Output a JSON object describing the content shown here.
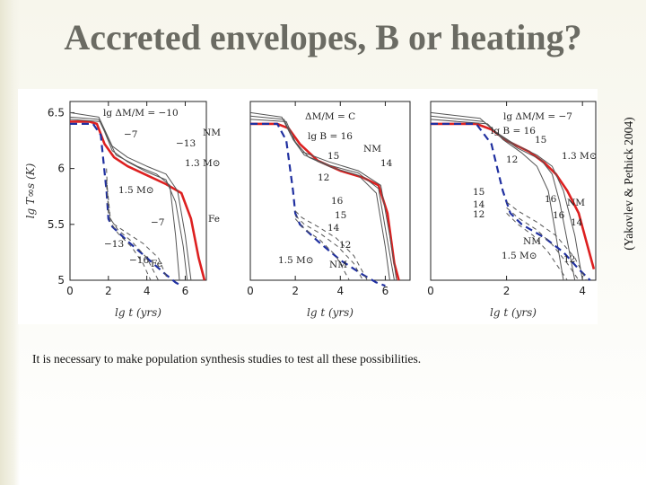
{
  "slide": {
    "title": "Accreted envelopes, B or heating?",
    "credit": "(Yakovlev & Pethick 2004)",
    "caption": "It is necessary to make population synthesis studies to test all these possibilities."
  },
  "colors": {
    "accent": "#dd2020",
    "blue": "#2030a0",
    "line": "#555555"
  },
  "chart_data": [
    {
      "type": "line",
      "panel": "left",
      "xlabel": "lg t   (yrs)",
      "ylabel": "lg T∞s  (K)",
      "xlim": [
        0,
        7.1
      ],
      "ylim": [
        5,
        6.6
      ],
      "xticks": [
        0,
        2,
        4,
        6
      ],
      "yticks": [
        5,
        5.5,
        6,
        6.5
      ],
      "labels": [
        "lg ΔM/M = −10",
        "−7",
        "−13",
        "NM",
        "1.3 M⊙",
        "1.5 M⊙",
        "−7",
        "Fe",
        "−13",
        "−16",
        "Fe"
      ],
      "series": [
        {
          "style": "red",
          "x": [
            0,
            1.0,
            1.4,
            1.8,
            2.3,
            3.0,
            4.0,
            5.0,
            5.8,
            6.3,
            6.7,
            7.0
          ],
          "y": [
            6.42,
            6.42,
            6.4,
            6.22,
            6.1,
            6.02,
            5.94,
            5.86,
            5.78,
            5.55,
            5.2,
            5.0
          ]
        },
        {
          "style": "thin",
          "x": [
            0,
            1.5,
            1.8,
            2.2,
            3.0,
            4.0,
            5.0,
            5.6,
            6.0,
            6.3
          ],
          "y": [
            6.5,
            6.46,
            6.35,
            6.2,
            6.1,
            6.02,
            5.95,
            5.8,
            5.4,
            5.0
          ]
        },
        {
          "style": "thin",
          "x": [
            0,
            1.5,
            1.8,
            2.2,
            3.0,
            4.0,
            5.0,
            5.5,
            5.9,
            6.1
          ],
          "y": [
            6.46,
            6.44,
            6.33,
            6.16,
            6.06,
            5.97,
            5.9,
            5.7,
            5.3,
            5.0
          ]
        },
        {
          "style": "thin",
          "x": [
            0,
            1.6,
            1.9,
            2.4,
            3.5,
            4.5,
            5.2,
            5.5,
            5.7
          ],
          "y": [
            6.44,
            6.42,
            6.3,
            6.12,
            6.02,
            5.95,
            5.85,
            5.4,
            5.0
          ]
        },
        {
          "style": "bluedash",
          "x": [
            0,
            1.2,
            1.6,
            1.9,
            2.0,
            2.2,
            3.0,
            4.0,
            5.0,
            5.5,
            5.8
          ],
          "y": [
            6.4,
            6.4,
            6.3,
            5.8,
            5.55,
            5.48,
            5.35,
            5.2,
            5.05,
            4.98,
            4.95
          ]
        },
        {
          "style": "dash",
          "x": [
            1.9,
            2.0,
            2.3,
            3.0,
            3.8,
            4.6,
            5.1
          ],
          "y": [
            6.0,
            5.58,
            5.5,
            5.42,
            5.33,
            5.2,
            5.0
          ]
        },
        {
          "style": "dash",
          "x": [
            1.9,
            2.1,
            2.5,
            3.2,
            4.0,
            4.6
          ],
          "y": [
            5.9,
            5.55,
            5.45,
            5.35,
            5.2,
            5.0
          ]
        },
        {
          "style": "dash",
          "x": [
            1.9,
            2.1,
            2.5,
            3.2,
            3.8,
            4.2
          ],
          "y": [
            5.85,
            5.52,
            5.42,
            5.3,
            5.15,
            5.0
          ]
        }
      ]
    },
    {
      "type": "line",
      "panel": "middle",
      "xlabel": "lg t   (yrs)",
      "ylabel": "",
      "xlim": [
        0,
        7.1
      ],
      "ylim": [
        5,
        6.6
      ],
      "xticks": [
        0,
        2,
        4,
        6
      ],
      "yticks": [],
      "labels": [
        "ΔM/M = C",
        "lg B = 16",
        "15",
        "12",
        "NM",
        "14",
        "16",
        "15",
        "14",
        "12",
        "1.5 M⊙",
        "NM"
      ],
      "series": [
        {
          "style": "red",
          "x": [
            0,
            1.2,
            1.7,
            2.2,
            3.0,
            4.0,
            5.0,
            5.7,
            6.1,
            6.4,
            6.6
          ],
          "y": [
            6.4,
            6.4,
            6.36,
            6.22,
            6.07,
            5.98,
            5.92,
            5.85,
            5.6,
            5.15,
            5.0
          ]
        },
        {
          "style": "thin",
          "x": [
            0,
            1.4,
            1.8,
            2.3,
            3.5,
            4.8,
            5.8,
            6.2,
            6.5
          ],
          "y": [
            6.5,
            6.46,
            6.3,
            6.15,
            6.06,
            5.98,
            5.85,
            5.4,
            5.0
          ]
        },
        {
          "style": "thin",
          "x": [
            0,
            1.5,
            1.9,
            2.4,
            3.5,
            4.8,
            5.7,
            6.1,
            6.4
          ],
          "y": [
            6.47,
            6.44,
            6.26,
            6.12,
            6.03,
            5.96,
            5.82,
            5.35,
            5.0
          ]
        },
        {
          "style": "thin",
          "x": [
            0,
            1.6,
            2.0,
            2.6,
            3.6,
            4.8,
            5.6,
            6.0,
            6.2
          ],
          "y": [
            6.44,
            6.42,
            6.24,
            6.1,
            6.01,
            5.94,
            5.78,
            5.3,
            5.0
          ]
        },
        {
          "style": "bluedash",
          "x": [
            0,
            1.2,
            1.6,
            1.9,
            2.0,
            2.2,
            3.0,
            4.0,
            5.0,
            5.6,
            6.0
          ],
          "y": [
            6.4,
            6.4,
            6.25,
            5.8,
            5.6,
            5.5,
            5.35,
            5.18,
            5.05,
            4.98,
            4.95
          ]
        },
        {
          "style": "dash",
          "x": [
            2.0,
            2.3,
            3.0,
            3.8,
            4.6,
            5.2
          ],
          "y": [
            5.62,
            5.56,
            5.48,
            5.38,
            5.22,
            5.0
          ]
        },
        {
          "style": "dash",
          "x": [
            2.0,
            2.4,
            3.1,
            3.9,
            4.6,
            5.0
          ],
          "y": [
            5.58,
            5.5,
            5.42,
            5.3,
            5.15,
            5.0
          ]
        },
        {
          "style": "dash",
          "x": [
            2.0,
            2.4,
            3.1,
            3.8,
            4.4
          ],
          "y": [
            5.55,
            5.46,
            5.36,
            5.22,
            5.0
          ]
        }
      ]
    },
    {
      "type": "line",
      "panel": "right",
      "xlabel": "lg t   (yrs)",
      "ylabel": "",
      "xlim": [
        0,
        4.35
      ],
      "ylim": [
        5,
        6.6
      ],
      "xticks": [
        0,
        2,
        4
      ],
      "yticks": [],
      "labels": [
        "lg ΔM/M = −7",
        "lg B = 16",
        "15",
        "12",
        "1.3 M⊙",
        "NM",
        "14",
        "15",
        "14",
        "12",
        "16",
        "16",
        "NM",
        "1.5 M⊙",
        "12"
      ],
      "series": [
        {
          "style": "red",
          "x": [
            0,
            1.2,
            1.6,
            2.0,
            2.6,
            3.0,
            3.3,
            3.6,
            3.9,
            4.1,
            4.3
          ],
          "y": [
            6.4,
            6.4,
            6.35,
            6.25,
            6.15,
            6.05,
            5.95,
            5.8,
            5.6,
            5.35,
            5.1
          ]
        },
        {
          "style": "thin",
          "x": [
            0,
            1.3,
            1.7,
            2.2,
            2.8,
            3.2,
            3.5,
            3.8,
            4.0
          ],
          "y": [
            6.5,
            6.45,
            6.33,
            6.22,
            6.12,
            6.02,
            5.8,
            5.4,
            5.0
          ]
        },
        {
          "style": "thin",
          "x": [
            0,
            1.4,
            1.8,
            2.3,
            2.9,
            3.2,
            3.4,
            3.6,
            3.8
          ],
          "y": [
            6.47,
            6.42,
            6.3,
            6.18,
            6.08,
            5.95,
            5.7,
            5.35,
            5.0
          ]
        },
        {
          "style": "thin",
          "x": [
            0,
            1.5,
            1.9,
            2.4,
            2.8,
            3.1,
            3.3,
            3.5
          ],
          "y": [
            6.44,
            6.4,
            6.26,
            6.14,
            6.02,
            5.8,
            5.4,
            5.0
          ]
        },
        {
          "style": "bluedash",
          "x": [
            0,
            1.2,
            1.6,
            1.9,
            2.1,
            2.4,
            3.0,
            3.5,
            3.9,
            4.2
          ],
          "y": [
            6.4,
            6.4,
            6.22,
            5.8,
            5.6,
            5.5,
            5.38,
            5.25,
            5.1,
            5.0
          ]
        },
        {
          "style": "dash",
          "x": [
            2.0,
            2.3,
            2.8,
            3.3,
            3.8,
            4.1
          ],
          "y": [
            5.7,
            5.62,
            5.52,
            5.4,
            5.2,
            5.0
          ]
        },
        {
          "style": "dash",
          "x": [
            2.0,
            2.3,
            2.8,
            3.2,
            3.6,
            3.9
          ],
          "y": [
            5.65,
            5.56,
            5.45,
            5.32,
            5.15,
            5.0
          ]
        },
        {
          "style": "dash",
          "x": [
            2.0,
            2.3,
            2.7,
            3.1,
            3.4,
            3.6
          ],
          "y": [
            5.6,
            5.5,
            5.4,
            5.25,
            5.1,
            5.0
          ]
        }
      ]
    }
  ]
}
